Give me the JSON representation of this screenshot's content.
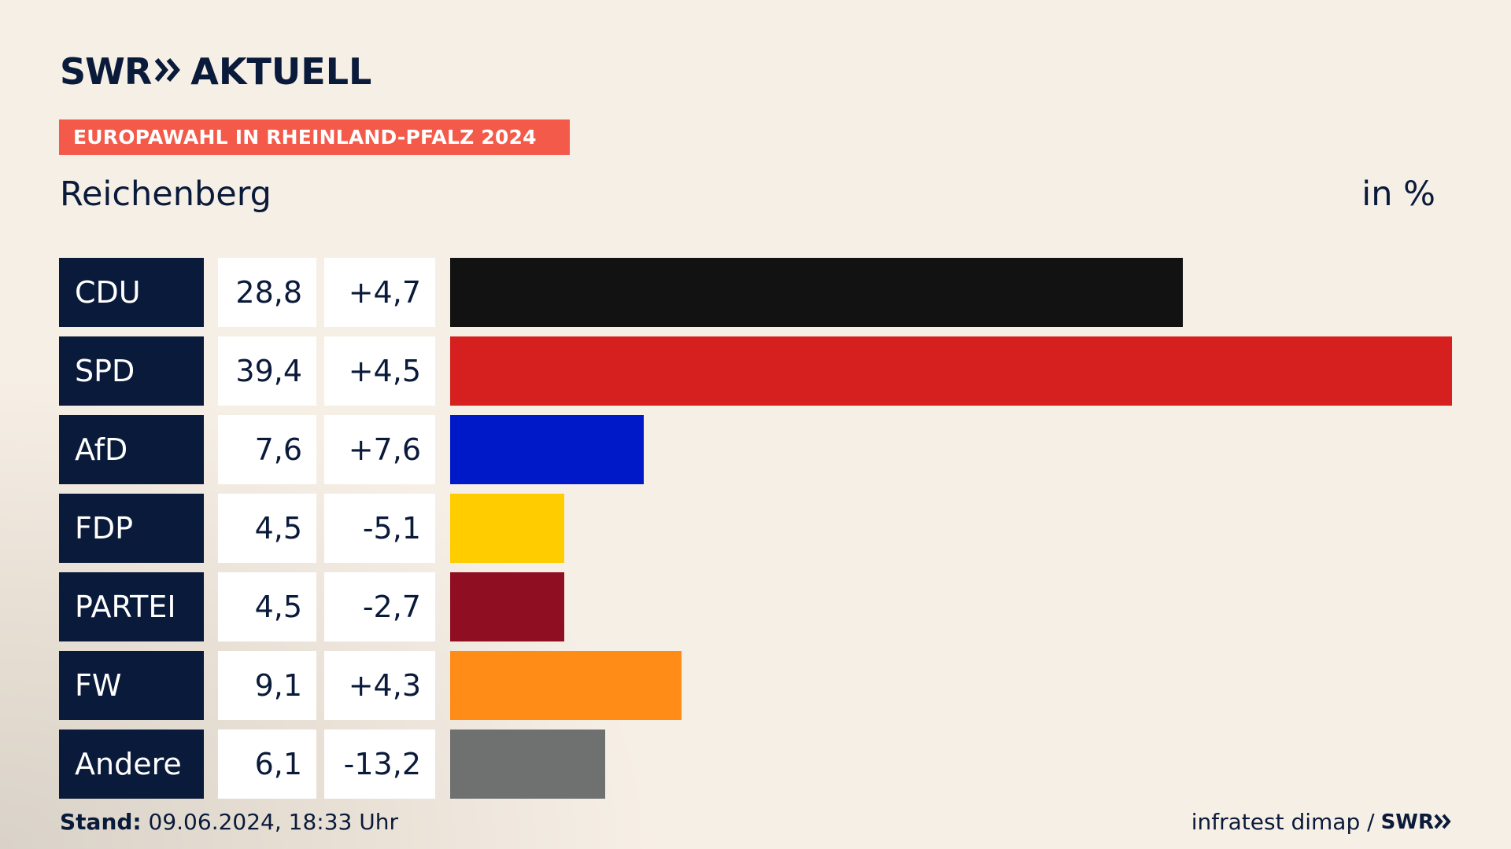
{
  "header": {
    "logo_swr": "SWR",
    "logo_aktuell": "AKTUELL",
    "banner": "EUROPAWAHL IN RHEINLAND-PFALZ 2024",
    "region": "Reichenberg",
    "unit": "in %"
  },
  "footer": {
    "stand_label": "Stand:",
    "stand_value": "09.06.2024, 18:33 Uhr",
    "source": "infratest dimap /",
    "source_brand": "SWR"
  },
  "colors": {
    "accent": "#f35a4a",
    "navy": "#0a1a3a"
  },
  "chart_data": {
    "type": "bar",
    "title": "EUROPAWAHL IN RHEINLAND-PFALZ 2024",
    "subtitle": "Reichenberg",
    "unit": "in %",
    "categories": [
      "CDU",
      "SPD",
      "AfD",
      "FDP",
      "PARTEI",
      "FW",
      "Andere"
    ],
    "values": [
      28.8,
      39.4,
      7.6,
      4.5,
      4.5,
      9.1,
      6.1
    ],
    "value_labels": [
      "28,8",
      "39,4",
      "7,6",
      "4,5",
      "4,5",
      "9,1",
      "6,1"
    ],
    "diff_labels": [
      "+4,7",
      "+4,5",
      "+7,6",
      "-5,1",
      "-2,7",
      "+4,3",
      "-13,2"
    ],
    "diffs": [
      4.7,
      4.5,
      7.6,
      -5.1,
      -2.7,
      4.3,
      -13.2
    ],
    "bar_colors": [
      "#121212",
      "#d62020",
      "#0019c8",
      "#ffcc00",
      "#8f0e22",
      "#ff8c16",
      "#6f7070"
    ],
    "xlim": [
      0,
      39.4
    ]
  }
}
